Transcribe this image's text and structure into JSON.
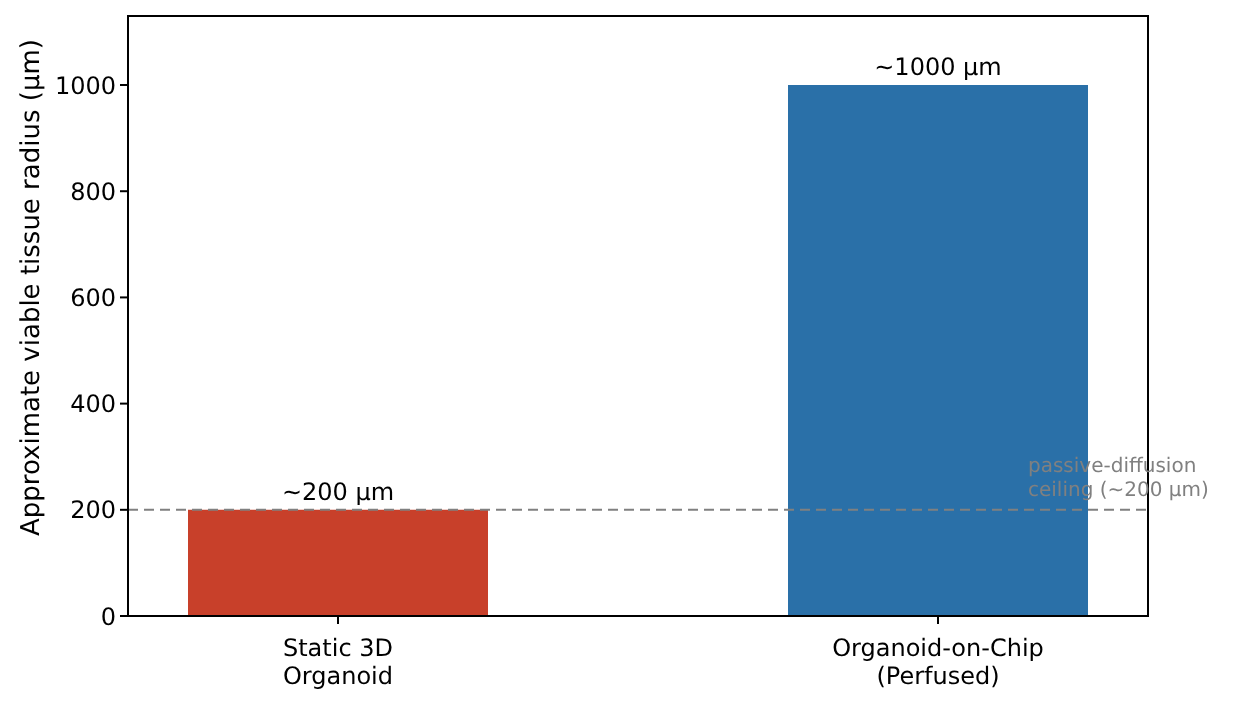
{
  "chart_data": {
    "type": "bar",
    "ylabel": "Approximate viable tissue radius (µm)",
    "categories": [
      "Static 3D\nOrganoid",
      "Organoid-on-Chip\n(Perfused)"
    ],
    "values": [
      200,
      1000
    ],
    "colors": [
      "#c8402a",
      "#2a70a8"
    ],
    "value_labels": [
      "~200 µm",
      "~1000 µm"
    ],
    "ylim": [
      0,
      1130
    ],
    "yticks": [
      0,
      200,
      400,
      600,
      800,
      1000
    ],
    "grid": false,
    "legend": false,
    "ref_lines": [
      {
        "axis": "y",
        "value": 200,
        "label": "passive-diffusion\nceiling (~200 µm)",
        "color": "#808080",
        "line_style": "dashed"
      }
    ]
  }
}
